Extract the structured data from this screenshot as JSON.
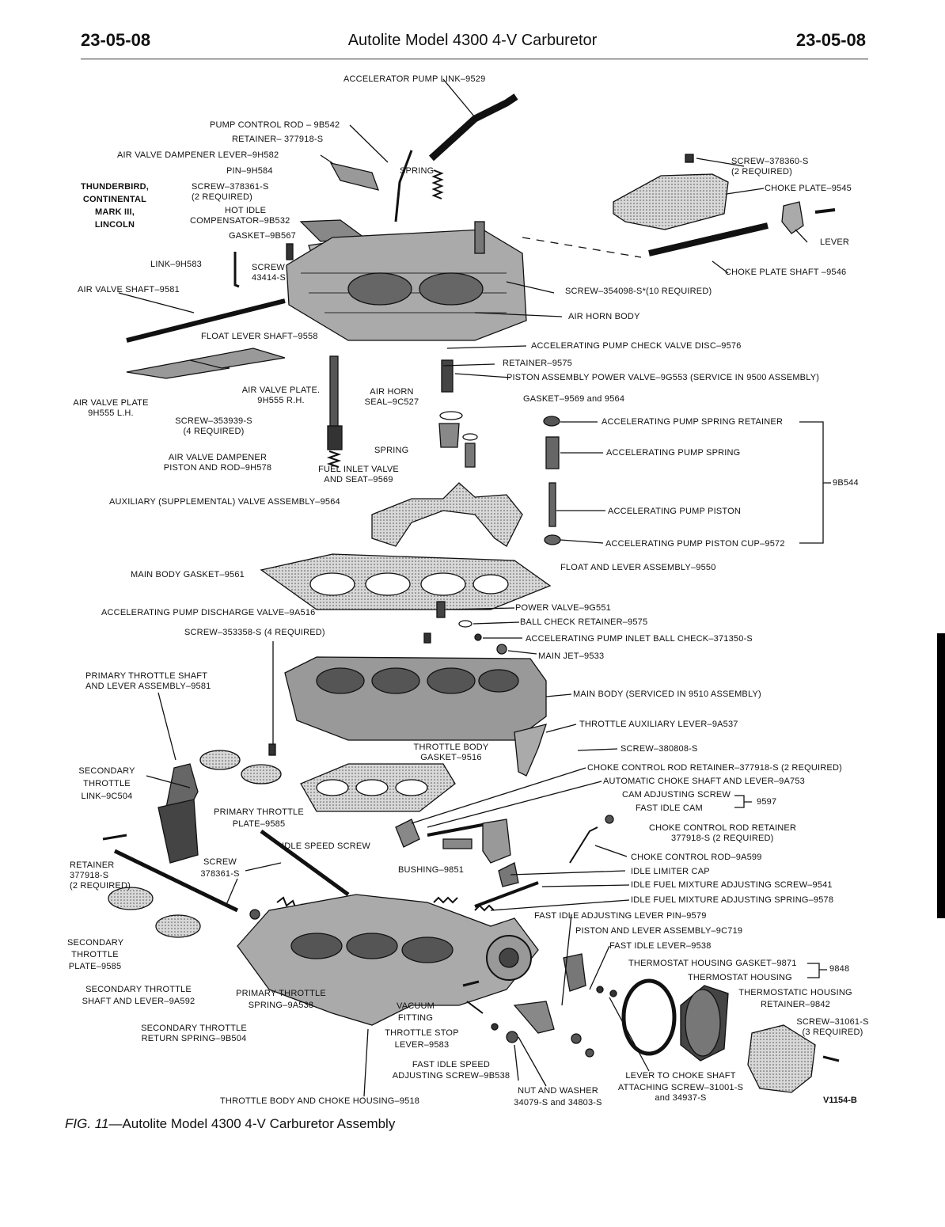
{
  "header": {
    "page_left": "23-05-08",
    "title": "Autolite Model 4300 4-V Carburetor",
    "page_right": "23-05-08"
  },
  "labels": {
    "accelerator_pump_link": "ACCELERATOR PUMP LINK–9529",
    "pump_control_rod": "PUMP CONTROL ROD – 9B542",
    "retainer_377918": "RETAINER– 377918-S",
    "air_valve_dampener_lever": "AIR VALVE DAMPENER LEVER–9H582",
    "pin_9h584": "PIN–9H584",
    "spring_top": "SPRING",
    "vehicles_1": "THUNDERBIRD,",
    "vehicles_2": "CONTINENTAL",
    "vehicles_3": "MARK III,",
    "vehicles_4": "LINCOLN",
    "screw_378361_1": "SCREW–378361-S",
    "screw_378361_2": "(2 REQUIRED)",
    "hot_idle": "HOT IDLE",
    "compensator": "COMPENSATOR–9B532",
    "gasket_9b567": "GASKET–9B567",
    "link_9h583": "LINK–9H583",
    "screw_43414_1": "SCREW",
    "screw_43414_2": "43414-S",
    "air_valve_shaft": "AIR VALVE SHAFT–9581",
    "screw_378360_1": "SCREW–378360-S",
    "screw_378360_2": "(2 REQUIRED)",
    "choke_plate": "CHOKE PLATE–9545",
    "lever": "LEVER",
    "choke_plate_shaft": "CHOKE PLATE SHAFT –9546",
    "screw_354098": "SCREW–354098-S*(10 REQUIRED)",
    "air_horn_body": "AIR HORN BODY",
    "float_lever_shaft": "FLOAT LEVER SHAFT–9558",
    "acc_pump_check_valve": "ACCELERATING PUMP CHECK VALVE DISC–9576",
    "retainer_9575": "RETAINER–9575",
    "piston_assembly": "PISTON ASSEMBLY POWER VALVE–9G553 (SERVICE IN 9500 ASSEMBLY)",
    "air_valve_plate_lh_1": "AIR VALVE PLATE",
    "air_valve_plate_lh_2": "9H555 L.H.",
    "air_valve_plate_rh_1": "AIR VALVE PLATE.",
    "air_valve_plate_rh_2": "9H555 R.H.",
    "air_horn_seal_1": "AIR HORN",
    "air_horn_seal_2": "SEAL–9C527",
    "gasket_9569": "GASKET–9569 and 9564",
    "screw_353939_1": "SCREW–353939-S",
    "screw_353939_2": "(4 REQUIRED)",
    "acc_pump_spring_retainer": "ACCELERATING PUMP SPRING RETAINER",
    "spring_mid": "SPRING",
    "acc_pump_spring": "ACCELERATING PUMP SPRING",
    "air_valve_dampener_piston_1": "AIR VALVE DAMPENER",
    "air_valve_dampener_piston_2": "PISTON AND ROD–9H578",
    "fuel_inlet_valve_1": "FUEL INLET VALVE",
    "fuel_inlet_valve_2": "AND SEAT–9569",
    "group_9b544": "9B544",
    "auxiliary_valve": "AUXILIARY (SUPPLEMENTAL) VALVE ASSEMBLY–9564",
    "acc_pump_piston": "ACCELERATING PUMP PISTON",
    "acc_pump_piston_cup": "ACCELERATING PUMP PISTON CUP–9572",
    "float_lever_assembly": "FLOAT AND LEVER ASSEMBLY–9550",
    "main_body_gasket": "MAIN BODY GASKET–9561",
    "acc_pump_discharge": "ACCELERATING PUMP DISCHARGE VALVE–9A516",
    "power_valve": "POWER VALVE–9G551",
    "ball_check_retainer": "BALL CHECK RETAINER–9575",
    "screw_353358": "SCREW–353358-S (4 REQUIRED)",
    "acc_pump_inlet_ball": "ACCELERATING PUMP INLET BALL CHECK–371350-S",
    "main_jet": "MAIN JET–9533",
    "primary_throttle_shaft_1": "PRIMARY THROTTLE SHAFT",
    "primary_throttle_shaft_2": "AND LEVER ASSEMBLY–9581",
    "main_body": "MAIN BODY (SERVICED IN 9510 ASSEMBLY)",
    "throttle_aux_lever": "THROTTLE AUXILIARY LEVER–9A537",
    "throttle_body_gasket_1": "THROTTLE BODY",
    "throttle_body_gasket_2": "GASKET–9516",
    "screw_380808": "SCREW–380808-S",
    "secondary_throttle_link_1": "SECONDARY",
    "secondary_throttle_link_2": "THROTTLE",
    "secondary_throttle_link_3": "LINK–9C504",
    "choke_control_rod_retainer_top": "CHOKE CONTROL ROD RETAINER–377918-S (2 REQUIRED)",
    "auto_choke_shaft": "AUTOMATIC CHOKE SHAFT AND LEVER–9A753",
    "cam_adjusting_screw": "CAM ADJUSTING SCREW",
    "fast_idle_cam": "FAST IDLE CAM",
    "group_9597": "9597",
    "primary_throttle_plate_1": "PRIMARY THROTTLE",
    "primary_throttle_plate_2": "PLATE–9585",
    "choke_control_rod_retainer_1": "CHOKE CONTROL ROD RETAINER",
    "choke_control_rod_retainer_2": "377918-S (2 REQUIRED)",
    "idle_speed_screw": "IDLE SPEED SCREW",
    "choke_control_rod": "CHOKE CONTROL ROD–9A599",
    "retainer_left_1": "RETAINER",
    "retainer_left_2": "377918-S",
    "retainer_left_3": "(2 REQUIRED)",
    "screw_378361b_1": "SCREW",
    "screw_378361b_2": "378361-S",
    "bushing": "BUSHING–9851",
    "idle_limiter_cap": "IDLE LIMITER CAP",
    "idle_fuel_screw": "IDLE FUEL MIXTURE ADJUSTING SCREW–9541",
    "idle_fuel_spring": "IDLE FUEL MIXTURE ADJUSTING SPRING–9578",
    "fast_idle_lever_pin": "FAST IDLE ADJUSTING LEVER PIN–9579",
    "piston_lever_assembly": "PISTON AND LEVER ASSEMBLY–9C719",
    "secondary_throttle_plate_1": "SECONDARY",
    "secondary_throttle_plate_2": "THROTTLE",
    "secondary_throttle_plate_3": "PLATE–9585",
    "fast_idle_lever": "FAST IDLE LEVER–9538",
    "thermostat_housing_gasket": "THERMOSTAT HOUSING GASKET–9871",
    "thermostat_housing": "THERMOSTAT HOUSING",
    "group_9848": "9848",
    "secondary_throttle_shaft_1": "SECONDARY THROTTLE",
    "secondary_throttle_shaft_2": "SHAFT AND LEVER–9A592",
    "primary_throttle_spring_1": "PRIMARY THROTTLE",
    "primary_throttle_spring_2": "SPRING–9A538",
    "thermostatic_housing_retainer_1": "THERMOSTATIC HOUSING",
    "thermostatic_housing_retainer_2": "RETAINER–9842",
    "vacuum_fitting_1": "VACUUM",
    "vacuum_fitting_2": "FITTING",
    "screw_31061_1": "SCREW–31061-S",
    "screw_31061_2": "(3 REQUIRED)",
    "secondary_return_spring_1": "SECONDARY THROTTLE",
    "secondary_return_spring_2": "RETURN SPRING–9B504",
    "throttle_stop_lever_1": "THROTTLE STOP",
    "throttle_stop_lever_2": "LEVER–9583",
    "fast_idle_speed_screw_1": "FAST IDLE SPEED",
    "fast_idle_speed_screw_2": "ADJUSTING SCREW–9B538",
    "lever_to_choke_1": "LEVER TO CHOKE SHAFT",
    "lever_to_choke_2": "ATTACHING SCREW–31001-S",
    "lever_to_choke_3": "and 34937-S",
    "nut_washer_1": "NUT AND WASHER",
    "nut_washer_2": "34079-S and 34803-S",
    "throttle_body_choke_housing": "THROTTLE BODY AND CHOKE HOUSING–9518"
  },
  "figure_code": "V1154-B",
  "caption": {
    "fig": "FIG. 11",
    "text": "—Autolite Model 4300 4-V Carburetor Assembly"
  }
}
